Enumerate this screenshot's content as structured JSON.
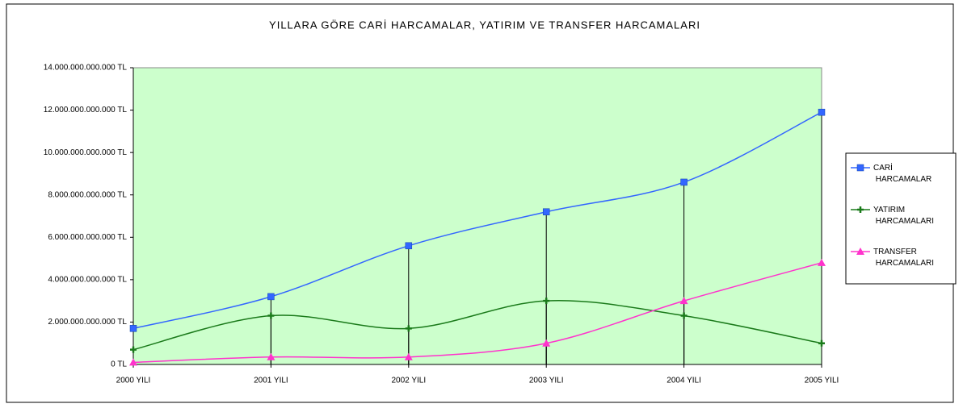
{
  "chart_data": {
    "type": "line",
    "title": "YILLARA GÖRE CARİ HARCAMALAR, YATIRIM VE TRANSFER HARCAMALARI",
    "categories": [
      "2000 YILI",
      "2001 YILI",
      "2002 YILI",
      "2003 YILI",
      "2004 YILI",
      "2005 YILI"
    ],
    "series": [
      {
        "name": "CARİ HARCAMALAR",
        "color": "#3366ff",
        "marker": "square",
        "values": [
          1700000000000,
          3200000000000,
          5600000000000,
          7200000000000,
          8600000000000,
          11900000000000
        ]
      },
      {
        "name": "YATIRIM HARCAMALARI",
        "color": "#1a7a1a",
        "marker": "plus",
        "values": [
          700000000000,
          2300000000000,
          1700000000000,
          3000000000000,
          2300000000000,
          1000000000000
        ]
      },
      {
        "name": "TRANSFER HARCAMALARI",
        "color": "#ff33cc",
        "marker": "triangle",
        "values": [
          100000000000,
          350000000000,
          350000000000,
          1000000000000,
          3000000000000,
          4800000000000
        ]
      }
    ],
    "ylim": [
      0,
      14000000000000
    ],
    "yticks": [
      {
        "value": 0,
        "label": "0 TL"
      },
      {
        "value": 2000000000000,
        "label": "2.000.000.000.000 TL"
      },
      {
        "value": 4000000000000,
        "label": "4.000.000.000.000 TL"
      },
      {
        "value": 6000000000000,
        "label": "6.000.000.000.000 TL"
      },
      {
        "value": 8000000000000,
        "label": "8.000.000.000.000 TL"
      },
      {
        "value": 10000000000000,
        "label": "10.000.000.000.000 TL"
      },
      {
        "value": 12000000000000,
        "label": "12.000.000.000.000 TL"
      },
      {
        "value": 14000000000000,
        "label": "14.000.000.000.000 TL"
      }
    ],
    "smooth": true,
    "drop_lines": true,
    "plot_background": "#ccffcc",
    "legend": "right"
  }
}
